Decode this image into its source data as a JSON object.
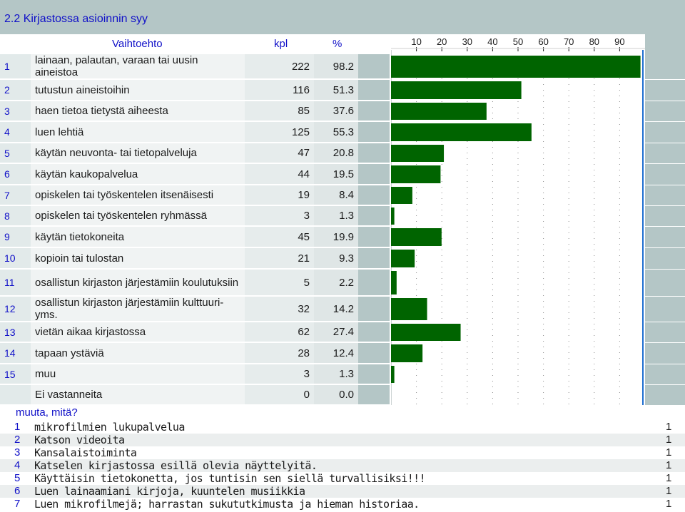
{
  "title": "2.2 Kirjastossa asioinnin syy",
  "headers": {
    "option": "Vaihtoehto",
    "count": "kpl",
    "percent": "%"
  },
  "colors": {
    "bar": "#006400",
    "header_text": "#1010c8",
    "band": "#b4c6c6",
    "ref_line": "#1e6ed0"
  },
  "chart_data": {
    "type": "bar",
    "orientation": "horizontal",
    "title": "",
    "xlabel": "",
    "ylabel": "",
    "xlim": [
      0,
      100
    ],
    "x_ticks": [
      "10",
      "20",
      "30",
      "40",
      "50",
      "60",
      "70",
      "80",
      "90"
    ],
    "categories": [
      "lainaan, palautan, varaan tai uusin aineistoa",
      "tutustun aineistoihin",
      "haen tietoa tietystä aiheesta",
      "luen lehtiä",
      "käytän neuvonta- tai tietopalveluja",
      "käytän kaukopalvelua",
      "opiskelen tai työskentelen itsenäisesti",
      "opiskelen tai työskentelen ryhmässä",
      "käytän tietokoneita",
      "kopioin tai tulostan",
      "osallistun kirjaston järjestämiin koulutuksiin",
      "osallistun kirjaston järjestämiin kulttuuri- yms.",
      "vietän aikaa kirjastossa",
      "tapaan ystäviä",
      "muu",
      "Ei vastanneita"
    ],
    "values": [
      98.2,
      51.3,
      37.6,
      55.3,
      20.8,
      19.5,
      8.4,
      1.3,
      19.9,
      9.3,
      2.2,
      14.2,
      27.4,
      12.4,
      1.3,
      0.0
    ],
    "grid": true
  },
  "rows": [
    {
      "num": "1",
      "label": "lainaan, palautan, varaan tai uusin aineistoa",
      "kpl": "222",
      "pct": "98.2"
    },
    {
      "num": "2",
      "label": "tutustun aineistoihin",
      "kpl": "116",
      "pct": "51.3"
    },
    {
      "num": "3",
      "label": "haen tietoa tietystä aiheesta",
      "kpl": "85",
      "pct": "37.6"
    },
    {
      "num": "4",
      "label": "luen lehtiä",
      "kpl": "125",
      "pct": "55.3"
    },
    {
      "num": "5",
      "label": "käytän neuvonta- tai tietopalveluja",
      "kpl": "47",
      "pct": "20.8"
    },
    {
      "num": "6",
      "label": "käytän kaukopalvelua",
      "kpl": "44",
      "pct": "19.5"
    },
    {
      "num": "7",
      "label": "opiskelen tai työskentelen itsenäisesti",
      "kpl": "19",
      "pct": "8.4"
    },
    {
      "num": "8",
      "label": "opiskelen tai työskentelen ryhmässä",
      "kpl": "3",
      "pct": "1.3"
    },
    {
      "num": "9",
      "label": "käytän tietokoneita",
      "kpl": "45",
      "pct": "19.9"
    },
    {
      "num": "10",
      "label": "kopioin tai tulostan",
      "kpl": "21",
      "pct": "9.3"
    },
    {
      "num": "11",
      "label": "osallistun kirjaston järjestämiin koulutuksiin",
      "kpl": "5",
      "pct": "2.2"
    },
    {
      "num": "12",
      "label": "osallistun kirjaston järjestämiin kulttuuri- yms.",
      "kpl": "32",
      "pct": "14.2"
    },
    {
      "num": "13",
      "label": "vietän aikaa kirjastossa",
      "kpl": "62",
      "pct": "27.4"
    },
    {
      "num": "14",
      "label": "tapaan ystäviä",
      "kpl": "28",
      "pct": "12.4"
    },
    {
      "num": "15",
      "label": "muu",
      "kpl": "3",
      "pct": "1.3"
    },
    {
      "num": "",
      "label": "Ei vastanneita",
      "kpl": "0",
      "pct": "0.0"
    }
  ],
  "other_title": "muuta, mitä?",
  "other_answers": [
    {
      "num": "1",
      "text": "mikrofilmien lukupalvelua",
      "count": "1"
    },
    {
      "num": "2",
      "text": "Katson videoita",
      "count": "1"
    },
    {
      "num": "3",
      "text": "Kansalaistoiminta",
      "count": "1"
    },
    {
      "num": "4",
      "text": "Katselen kirjastossa esillä olevia näyttelyitä.",
      "count": "1"
    },
    {
      "num": "5",
      "text": "Käyttäisin tietokonetta, jos tuntisin sen siellä turvallisiksi!!!",
      "count": "1"
    },
    {
      "num": "6",
      "text": "Luen lainaamiani kirjoja, kuuntelen musiikkia",
      "count": "1"
    },
    {
      "num": "7",
      "text": "Luen mikrofilmejä; harrastan sukututkimusta ja hieman historiaa.",
      "count": "1"
    }
  ]
}
